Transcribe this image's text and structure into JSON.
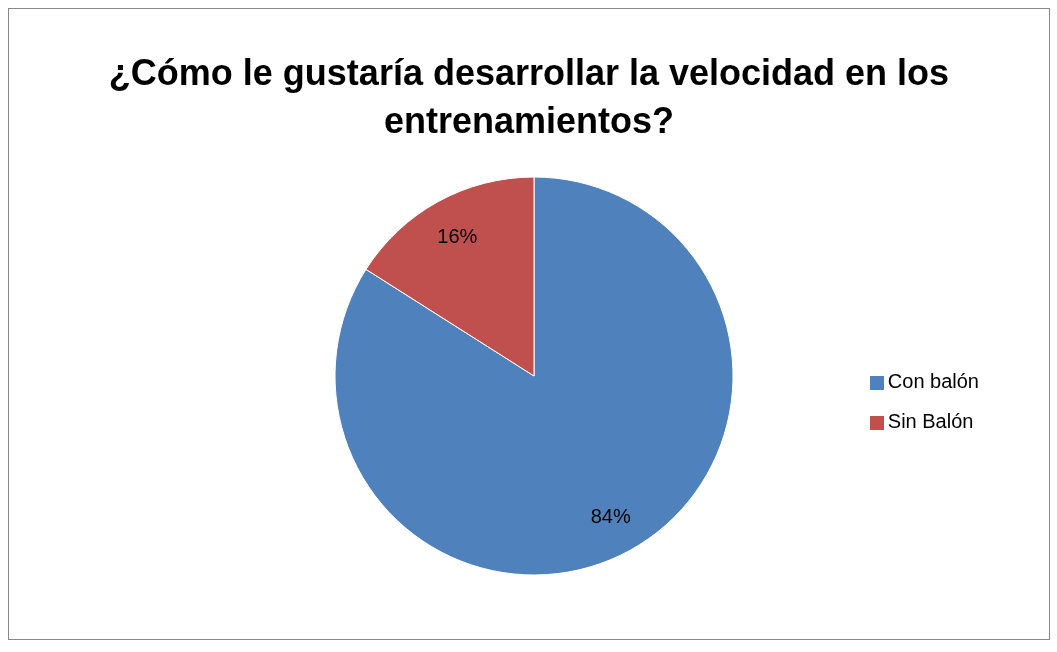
{
  "chart_data": {
    "type": "pie",
    "title": "¿Cómo le gustaría desarrollar la velocidad en los entrenamientos?",
    "categories": [
      "Con balón",
      "Sin Balón"
    ],
    "values": [
      84,
      16
    ],
    "colors": [
      "#4f81bd",
      "#c0504d"
    ],
    "value_labels": [
      "84%",
      "16%"
    ],
    "legend": "right"
  }
}
